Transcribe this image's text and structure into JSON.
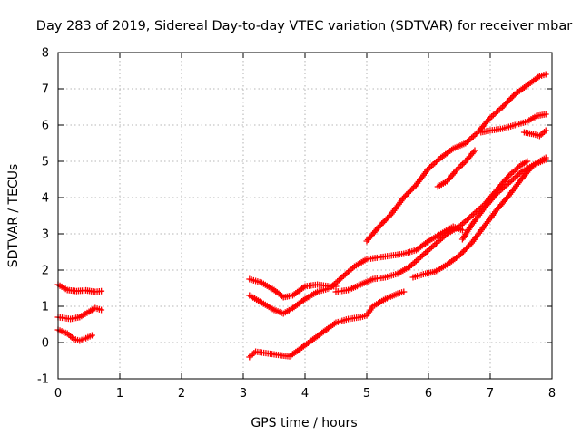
{
  "chart_data": {
    "type": "scatter",
    "title": "Day 283 of 2019, Sidereal Day-to-day VTEC variation (SDTVAR) for receiver mbar",
    "xlabel": "GPS time / hours",
    "ylabel": "SDTVAR / TECUs",
    "xlim": [
      0,
      8
    ],
    "ylim": [
      -1,
      8
    ],
    "xticks": [
      "0",
      "1",
      "2",
      "3",
      "4",
      "5",
      "6",
      "7",
      "8"
    ],
    "yticks": [
      "-1",
      "0",
      "1",
      "2",
      "3",
      "4",
      "5",
      "6",
      "7",
      "8"
    ],
    "grid": true,
    "marker": "plus",
    "point_color": "#ff0000",
    "series": [
      {
        "segments": [
          [
            [
              0.0,
              1.6
            ],
            [
              0.15,
              1.45
            ],
            [
              0.3,
              1.42
            ],
            [
              0.45,
              1.44
            ],
            [
              0.6,
              1.4
            ],
            [
              0.7,
              1.42
            ]
          ],
          [
            [
              3.1,
              1.75
            ],
            [
              3.3,
              1.65
            ],
            [
              3.5,
              1.45
            ],
            [
              3.65,
              1.25
            ],
            [
              3.8,
              1.3
            ],
            [
              4.0,
              1.55
            ],
            [
              4.2,
              1.6
            ],
            [
              4.4,
              1.55
            ],
            [
              4.5,
              1.55
            ]
          ],
          [
            [
              4.5,
              1.4
            ],
            [
              4.7,
              1.45
            ],
            [
              4.9,
              1.6
            ],
            [
              5.1,
              1.75
            ],
            [
              5.3,
              1.8
            ],
            [
              5.5,
              1.9
            ],
            [
              5.7,
              2.1
            ],
            [
              5.9,
              2.4
            ],
            [
              6.1,
              2.7
            ],
            [
              6.3,
              3.0
            ],
            [
              6.5,
              3.2
            ],
            [
              6.7,
              3.5
            ],
            [
              6.9,
              3.8
            ],
            [
              7.1,
              4.2
            ],
            [
              7.3,
              4.6
            ],
            [
              7.5,
              4.9
            ],
            [
              7.6,
              5.0
            ]
          ]
        ]
      },
      {
        "segments": [
          [
            [
              0.0,
              0.7
            ],
            [
              0.2,
              0.65
            ],
            [
              0.35,
              0.7
            ],
            [
              0.5,
              0.85
            ],
            [
              0.6,
              0.95
            ],
            [
              0.7,
              0.9
            ]
          ],
          [
            [
              3.1,
              1.3
            ],
            [
              3.3,
              1.1
            ],
            [
              3.5,
              0.9
            ],
            [
              3.65,
              0.8
            ],
            [
              3.8,
              0.95
            ],
            [
              4.0,
              1.2
            ],
            [
              4.2,
              1.4
            ],
            [
              4.4,
              1.5
            ],
            [
              4.6,
              1.8
            ],
            [
              4.8,
              2.1
            ],
            [
              5.0,
              2.3
            ],
            [
              5.2,
              2.35
            ],
            [
              5.4,
              2.4
            ],
            [
              5.6,
              2.45
            ],
            [
              5.8,
              2.55
            ],
            [
              6.0,
              2.8
            ],
            [
              6.2,
              3.0
            ],
            [
              6.4,
              3.2
            ],
            [
              6.55,
              3.1
            ]
          ],
          [
            [
              6.55,
              2.85
            ],
            [
              6.7,
              3.25
            ],
            [
              6.9,
              3.7
            ],
            [
              7.1,
              4.1
            ],
            [
              7.3,
              4.4
            ],
            [
              7.5,
              4.7
            ],
            [
              7.7,
              4.9
            ],
            [
              7.9,
              5.1
            ]
          ]
        ]
      },
      {
        "segments": [
          [
            [
              0.0,
              0.35
            ],
            [
              0.15,
              0.25
            ],
            [
              0.25,
              0.1
            ],
            [
              0.35,
              0.05
            ],
            [
              0.45,
              0.12
            ],
            [
              0.55,
              0.2
            ]
          ],
          [
            [
              3.1,
              -0.4
            ],
            [
              3.2,
              -0.25
            ],
            [
              3.4,
              -0.3
            ],
            [
              3.6,
              -0.35
            ],
            [
              3.75,
              -0.38
            ],
            [
              3.9,
              -0.2
            ],
            [
              4.1,
              0.05
            ],
            [
              4.3,
              0.3
            ],
            [
              4.5,
              0.55
            ],
            [
              4.7,
              0.65
            ],
            [
              4.9,
              0.7
            ],
            [
              5.0,
              0.75
            ],
            [
              5.1,
              1.0
            ],
            [
              5.3,
              1.2
            ],
            [
              5.5,
              1.35
            ],
            [
              5.6,
              1.4
            ]
          ],
          [
            [
              5.75,
              1.8
            ],
            [
              5.95,
              1.9
            ],
            [
              6.1,
              1.95
            ],
            [
              6.3,
              2.15
            ],
            [
              6.5,
              2.4
            ],
            [
              6.7,
              2.75
            ],
            [
              6.9,
              3.2
            ],
            [
              7.1,
              3.65
            ],
            [
              7.3,
              4.05
            ],
            [
              7.5,
              4.5
            ],
            [
              7.7,
              4.9
            ],
            [
              7.9,
              5.05
            ]
          ]
        ]
      },
      {
        "segments": [
          [
            [
              5.0,
              2.8
            ],
            [
              5.2,
              3.2
            ],
            [
              5.4,
              3.55
            ],
            [
              5.6,
              4.0
            ],
            [
              5.8,
              4.35
            ],
            [
              6.0,
              4.8
            ],
            [
              6.2,
              5.1
            ],
            [
              6.4,
              5.35
            ],
            [
              6.6,
              5.5
            ],
            [
              6.8,
              5.8
            ],
            [
              7.0,
              6.2
            ],
            [
              7.2,
              6.5
            ],
            [
              7.4,
              6.85
            ],
            [
              7.6,
              7.1
            ],
            [
              7.8,
              7.35
            ],
            [
              7.9,
              7.4
            ]
          ],
          [
            [
              6.15,
              4.3
            ],
            [
              6.3,
              4.45
            ],
            [
              6.45,
              4.75
            ],
            [
              6.6,
              5.0
            ],
            [
              6.75,
              5.3
            ]
          ],
          [
            [
              6.85,
              5.8
            ],
            [
              7.0,
              5.85
            ],
            [
              7.2,
              5.9
            ],
            [
              7.4,
              6.0
            ],
            [
              7.6,
              6.1
            ],
            [
              7.75,
              6.25
            ],
            [
              7.9,
              6.3
            ]
          ],
          [
            [
              7.55,
              5.8
            ],
            [
              7.7,
              5.75
            ],
            [
              7.8,
              5.7
            ],
            [
              7.9,
              5.85
            ]
          ]
        ]
      }
    ]
  }
}
